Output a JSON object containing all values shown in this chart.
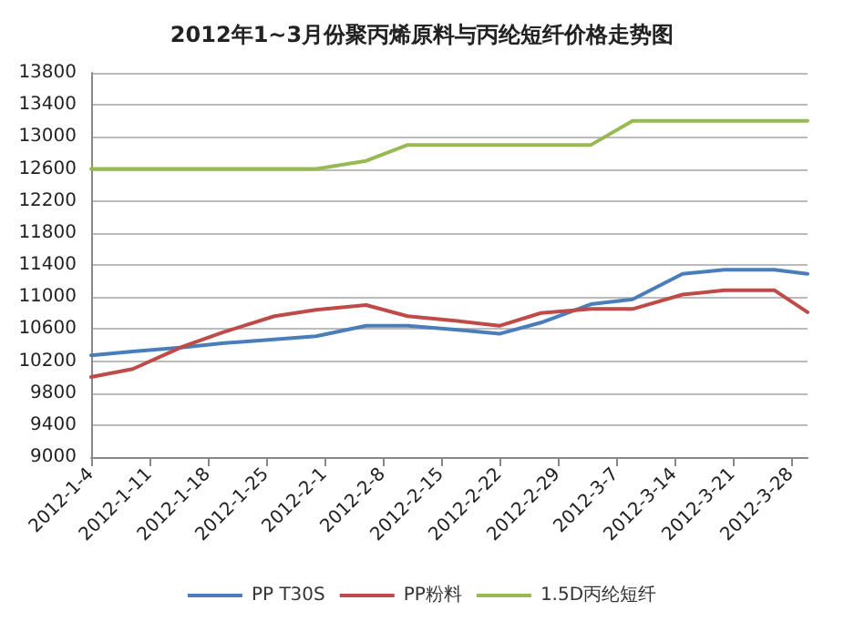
{
  "chart_data": {
    "type": "line",
    "title": "2012年1~3月份聚丙烯原料与丙纶短纤价格走势图",
    "x": [
      "2012-01-04",
      "2012-01-09",
      "2012-01-15",
      "2012-01-20",
      "2012-01-26",
      "2012-01-31",
      "2012-02-06",
      "2012-02-11",
      "2012-02-17",
      "2012-02-22",
      "2012-02-27",
      "2012-03-04",
      "2012-03-09",
      "2012-03-15",
      "2012-03-20",
      "2012-03-26",
      "2012-03-30"
    ],
    "series": [
      {
        "name": "PP T30S",
        "color": "#4a7ebb",
        "values": [
          10270,
          10320,
          10370,
          10425,
          10470,
          10510,
          10640,
          10640,
          10590,
          10540,
          10680,
          10910,
          10970,
          11290,
          11340,
          11340,
          11290
        ]
      },
      {
        "name": "PP粉料",
        "color": "#be4b48",
        "values": [
          10000,
          10100,
          10380,
          10565,
          10760,
          10840,
          10900,
          10760,
          10700,
          10640,
          10800,
          10850,
          10850,
          11030,
          11085,
          11085,
          10810
        ]
      },
      {
        "name": "1.5D丙纶短纤",
        "color": "#98b954",
        "values": [
          12600,
          12600,
          12600,
          12600,
          12600,
          12600,
          12700,
          12900,
          12900,
          12900,
          12900,
          12900,
          13200,
          13200,
          13200,
          13200,
          13200
        ]
      }
    ],
    "xlim": [
      "2012-01-04",
      "2012-03-30"
    ],
    "xticks": [
      {
        "value": "2012-01-04",
        "label": "2012-1-4"
      },
      {
        "value": "2012-01-11",
        "label": "2012-1-11"
      },
      {
        "value": "2012-01-18",
        "label": "2012-1-18"
      },
      {
        "value": "2012-01-25",
        "label": "2012-1-25"
      },
      {
        "value": "2012-02-01",
        "label": "2012-2-1"
      },
      {
        "value": "2012-02-08",
        "label": "2012-2-8"
      },
      {
        "value": "2012-02-15",
        "label": "2012-2-15"
      },
      {
        "value": "2012-02-22",
        "label": "2012-2-22"
      },
      {
        "value": "2012-02-29",
        "label": "2012-2-29"
      },
      {
        "value": "2012-03-07",
        "label": "2012-3-7"
      },
      {
        "value": "2012-03-14",
        "label": "2012-3-14"
      },
      {
        "value": "2012-03-21",
        "label": "2012-3-21"
      },
      {
        "value": "2012-03-28",
        "label": "2012-3-28"
      }
    ],
    "ylim": [
      9000,
      13800
    ],
    "yticks": [
      9000,
      9400,
      9800,
      10200,
      10600,
      11000,
      11400,
      11800,
      12200,
      12600,
      13000,
      13400,
      13800
    ],
    "grid": "y",
    "legend": "bottom",
    "marker": "none",
    "line_style": "solid"
  }
}
